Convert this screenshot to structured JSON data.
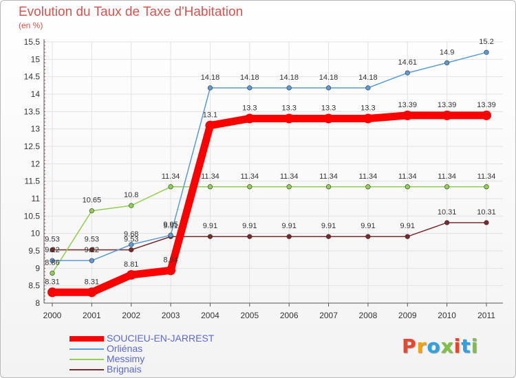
{
  "title": "Evolution du Taux de Taxe d'Habitation",
  "subtitle": "(en %)",
  "logo": {
    "text": "Proxiti",
    "colors": [
      "#e8452c",
      "#f0a30a",
      "#2aa3e0",
      "#7dc242",
      "#e8452c",
      "#2aa3e0",
      "#7dc242"
    ]
  },
  "chart_data": {
    "type": "line",
    "title": "Evolution du Taux de Taxe d'Habitation",
    "ylabel": "(en %)",
    "xlabel": "",
    "x": [
      "2000",
      "2001",
      "2002",
      "2003",
      "2004",
      "2005",
      "2006",
      "2007",
      "2008",
      "2009",
      "2010",
      "2011"
    ],
    "ylim": [
      8,
      15.5
    ],
    "yticks": [
      "8",
      "8.5",
      "9",
      "9.5",
      "10",
      "10.5",
      "11",
      "11.5",
      "12",
      "12.5",
      "13",
      "13.5",
      "14",
      "14.5",
      "15",
      "15.5"
    ],
    "series": [
      {
        "name": "SOUCIEU-EN-JARREST",
        "color": "#ff0000",
        "values": [
          8.31,
          8.31,
          8.81,
          8.94,
          13.1,
          13.3,
          13.3,
          13.3,
          13.3,
          13.39,
          13.39,
          13.39
        ],
        "labels": [
          "8.31",
          "8.31",
          "8.81",
          "8.94",
          "13.1",
          "13.3",
          "13.3",
          "13.3",
          "13.3",
          "13.39",
          "13.39",
          "13.39"
        ]
      },
      {
        "name": "Orliénas",
        "color": "#5a9bd5",
        "values": [
          9.22,
          9.22,
          9.68,
          9.95,
          14.18,
          14.18,
          14.18,
          14.18,
          14.18,
          14.61,
          14.9,
          15.2
        ],
        "labels": [
          "9.22",
          "9.22",
          "9.68",
          "9.95",
          "14.18",
          "14.18",
          "14.18",
          "14.18",
          "14.18",
          "14.61",
          "14.9",
          "15.2"
        ]
      },
      {
        "name": "Messimy",
        "color": "#8fd050",
        "values": [
          8.86,
          10.65,
          10.8,
          11.34,
          11.34,
          11.34,
          11.34,
          11.34,
          11.34,
          11.34,
          11.34,
          11.34
        ],
        "labels": [
          "8.86",
          "10.65",
          "10.8",
          "11.34",
          "11.34",
          "11.34",
          "11.34",
          "11.34",
          "11.34",
          "11.34",
          "11.34",
          "11.34"
        ]
      },
      {
        "name": "Brignais",
        "color": "#7a2a2a",
        "values": [
          9.53,
          9.53,
          9.53,
          9.91,
          9.91,
          9.91,
          9.91,
          9.91,
          9.91,
          9.91,
          10.31,
          10.31
        ],
        "labels": [
          "9.53",
          "9.53",
          "9.53",
          "9.91",
          "9.91",
          "9.91",
          "9.91",
          "9.91",
          "9.91",
          "9.91",
          "10.31",
          "10.31"
        ]
      }
    ]
  }
}
